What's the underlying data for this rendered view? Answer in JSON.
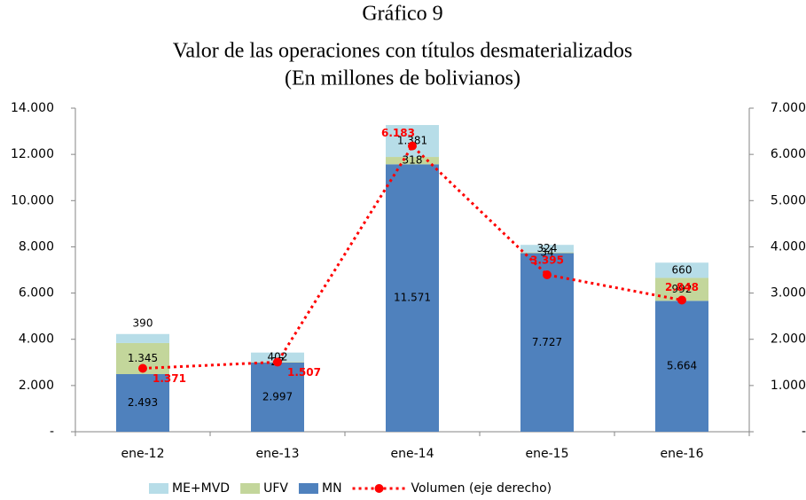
{
  "chart_data": {
    "type": "bar",
    "title": [
      "Gráfico 9",
      "Valor de las operaciones con títulos desmaterializados",
      "(En millones de bolivianos)"
    ],
    "categories": [
      "ene-12",
      "ene-13",
      "ene-14",
      "ene-15",
      "ene-16"
    ],
    "stacked": true,
    "series": [
      {
        "name": "MN",
        "color": "#4f81bd",
        "values": [
          2493,
          2997,
          11571,
          7727,
          5664
        ],
        "value_labels": [
          "2.493",
          "2.997",
          "11.571",
          "7.727",
          "5.664"
        ]
      },
      {
        "name": "UFV",
        "color": "#c3d69b",
        "values": [
          1345,
          27,
          318,
          34,
          992
        ],
        "value_labels": [
          "1.345",
          "27",
          "318",
          "34",
          "992"
        ]
      },
      {
        "name": "ME+MVD",
        "color": "#b7dde8",
        "values": [
          390,
          402,
          1381,
          324,
          660
        ],
        "value_labels": [
          "390",
          "402",
          "1.381",
          "324",
          "660"
        ]
      },
      {
        "name": "Volumen (eje derecho)",
        "type": "line",
        "axis": "y2",
        "color": "#ff0000",
        "values": [
          1371,
          1507,
          6183,
          3395,
          2848
        ],
        "value_labels": [
          "1.371",
          "1.507",
          "6.183",
          "3.395",
          "2.848"
        ]
      }
    ],
    "ylim": [
      0,
      14000
    ],
    "yticks": [
      {
        "value": 0,
        "label": "-"
      },
      {
        "value": 2000,
        "label": "2.000"
      },
      {
        "value": 4000,
        "label": "4.000"
      },
      {
        "value": 6000,
        "label": "6.000"
      },
      {
        "value": 8000,
        "label": "8.000"
      },
      {
        "value": 10000,
        "label": "10.000"
      },
      {
        "value": 12000,
        "label": "12.000"
      },
      {
        "value": 14000,
        "label": "14.000"
      }
    ],
    "y2lim": [
      0,
      7000
    ],
    "y2ticks": [
      {
        "value": 0,
        "label": "-"
      },
      {
        "value": 1000,
        "label": "1.000"
      },
      {
        "value": 2000,
        "label": "2.000"
      },
      {
        "value": 3000,
        "label": "3.000"
      },
      {
        "value": 4000,
        "label": "4.000"
      },
      {
        "value": 5000,
        "label": "5.000"
      },
      {
        "value": 6000,
        "label": "6.000"
      },
      {
        "value": 7000,
        "label": "7.000"
      }
    ],
    "legend": "bottom"
  }
}
